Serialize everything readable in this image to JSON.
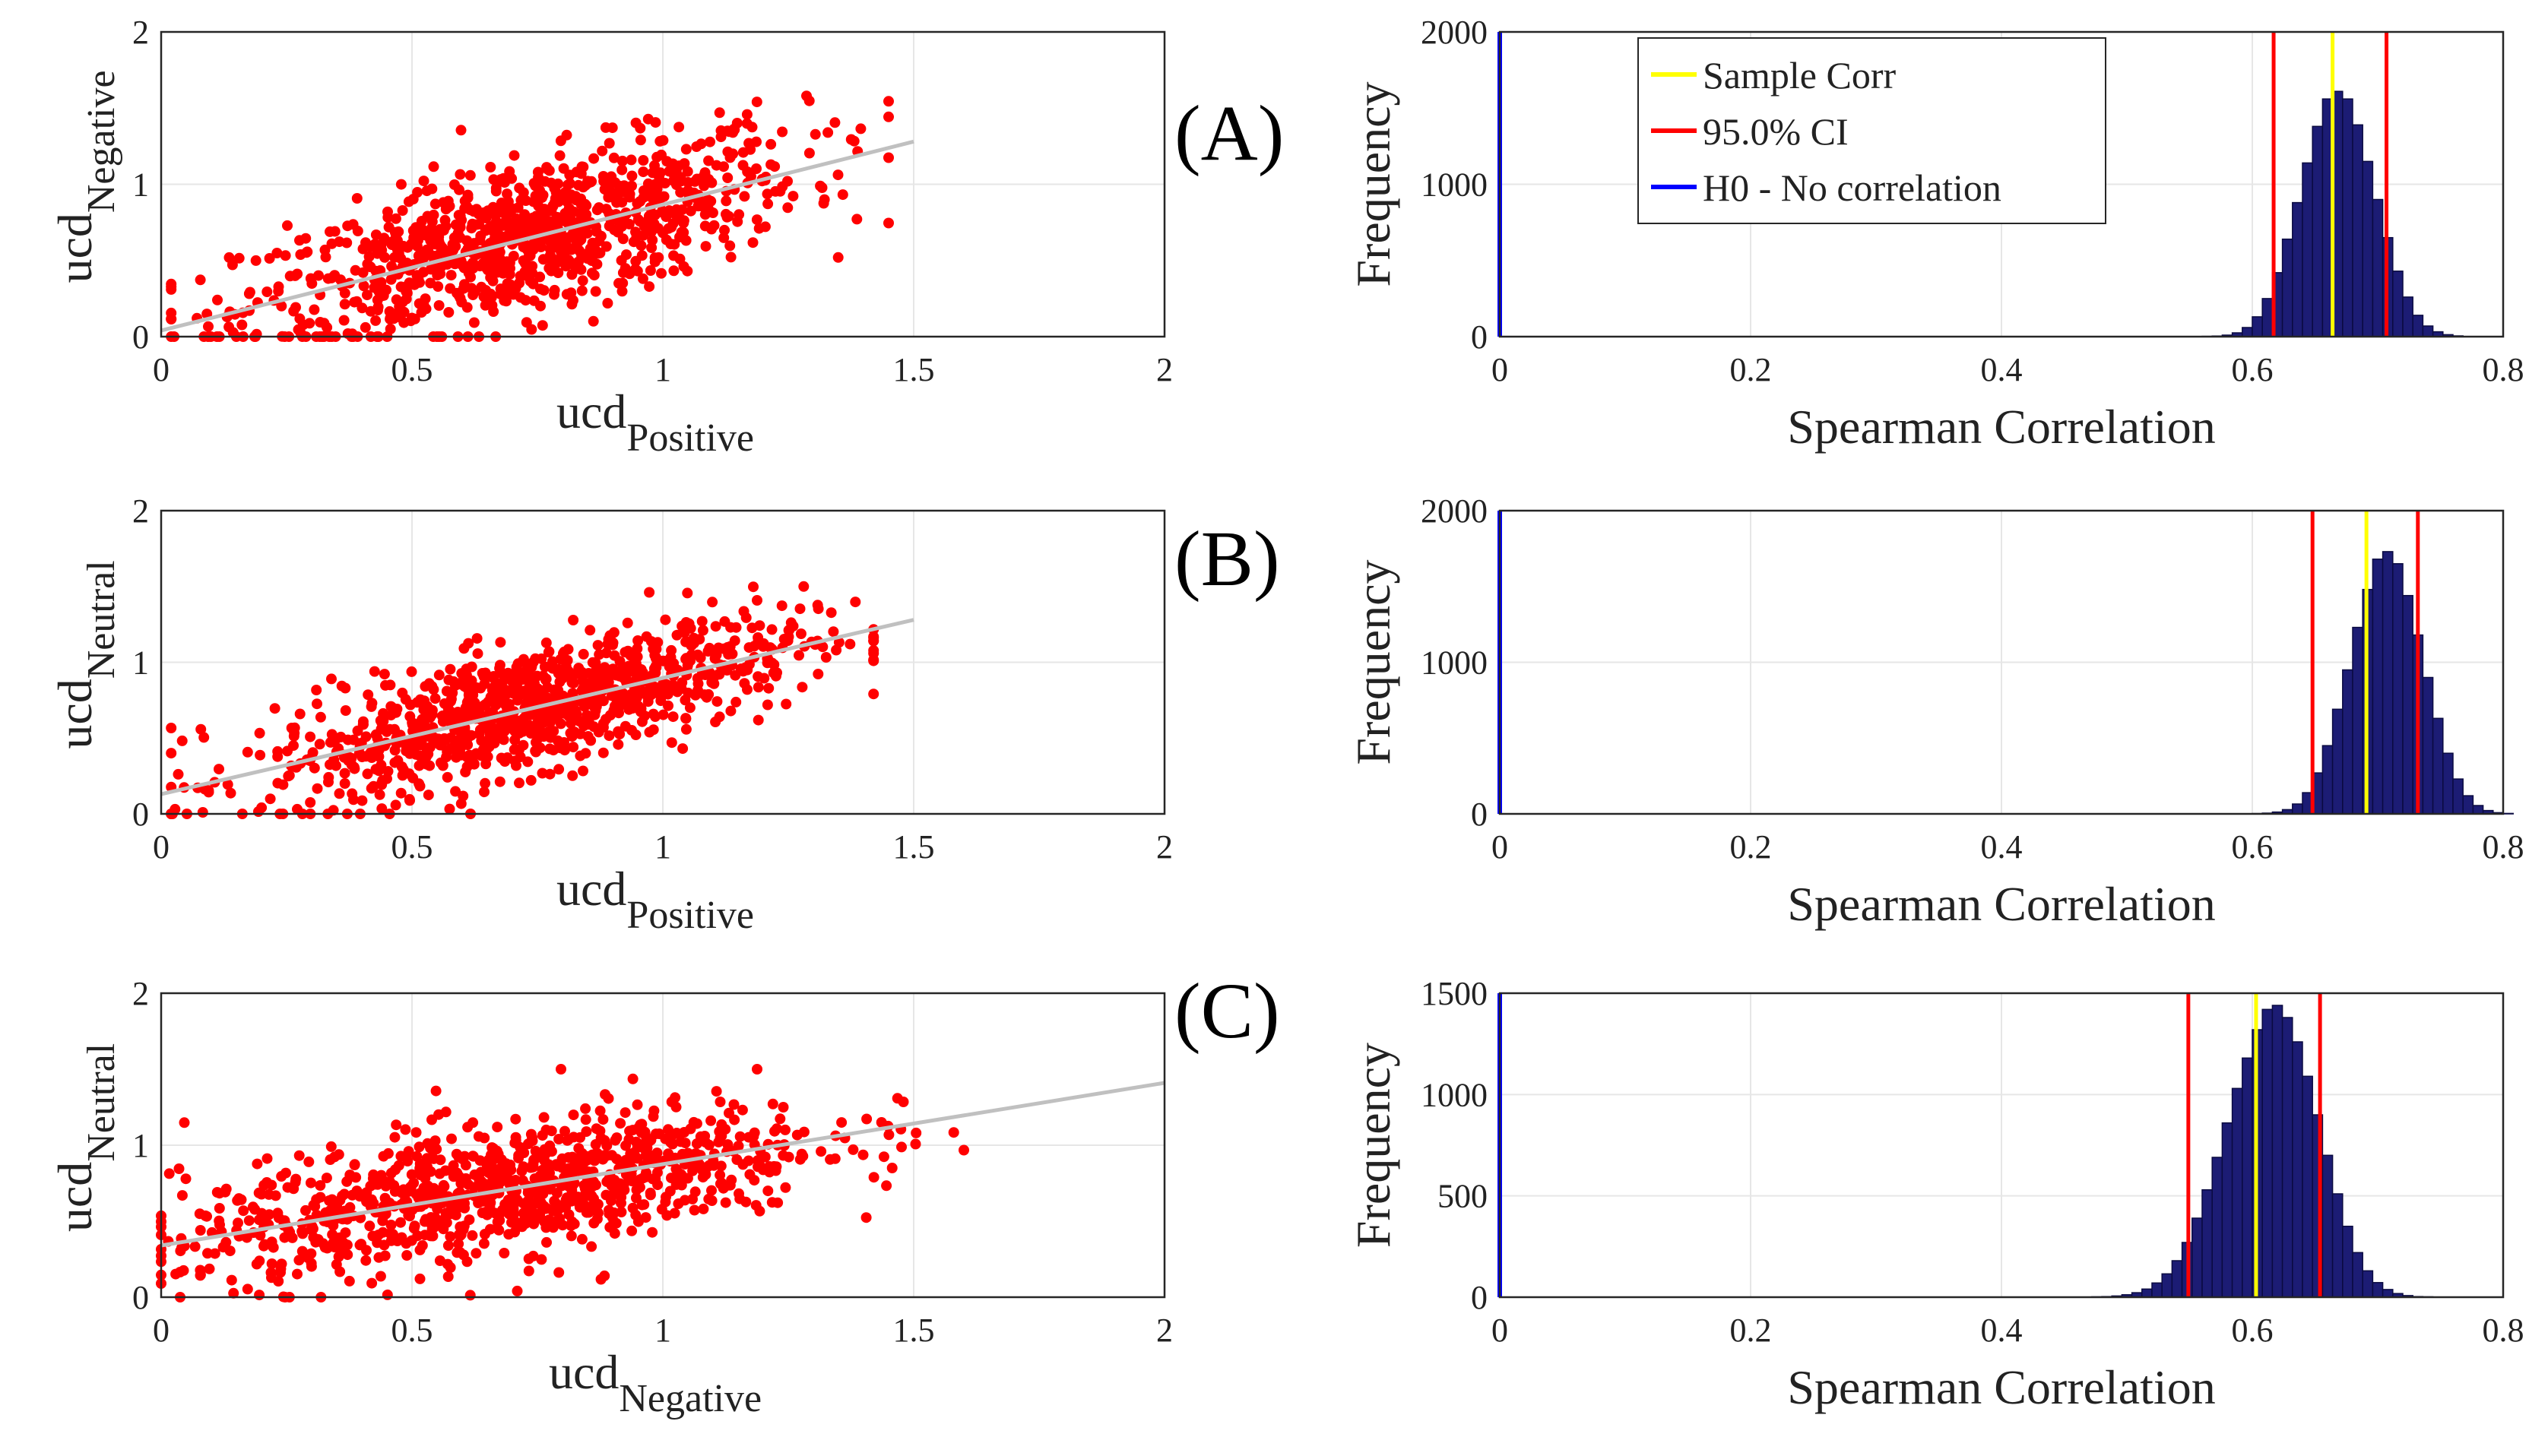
{
  "colors": {
    "scatter_points": "#ff0000",
    "fit_line": "#c0c0c0",
    "sample_corr": "#ffff00",
    "ci_line": "#ff0000",
    "null_line": "#0000ff",
    "hist_fill": "#1c1c74",
    "hist_edge": "#0a0a40",
    "grid": "#e6e6e6",
    "axis": "#262626"
  },
  "panel_labels": [
    "(A)",
    "(B)",
    "(C)"
  ],
  "legend": {
    "sample_corr": "Sample Corr",
    "ci": "95.0% CI",
    "h0": "H0 - No correlation"
  },
  "chart_data": [
    {
      "type": "scatter",
      "id": "A-scatter",
      "xlabel": "ucd",
      "xlabel_sub": "Positive",
      "ylabel": "ucd",
      "ylabel_sub": "Negative",
      "xlim": [
        0,
        2
      ],
      "ylim": [
        0,
        2
      ],
      "xticks": [
        "0",
        "0.5",
        "1",
        "1.5",
        "2"
      ],
      "yticks": [
        "0",
        "1",
        "2"
      ],
      "grid": true,
      "fit_line": {
        "x": [
          0,
          1.5
        ],
        "y": [
          0.04,
          1.28
        ]
      },
      "cloud": {
        "n": 1000,
        "x_mean": 0.72,
        "x_sd": 0.28,
        "x_range": [
          0.02,
          1.45
        ],
        "slope": 0.83,
        "intercept": 0.04,
        "noise_sd": 0.25,
        "y_range": [
          0,
          1.58
        ]
      }
    },
    {
      "type": "histogram",
      "id": "A-hist",
      "xlabel": "Spearman Correlation",
      "ylabel": "Frequency",
      "xlim": [
        0,
        0.8
      ],
      "ylim": [
        0,
        2000
      ],
      "xticks": [
        "0",
        "0.2",
        "0.4",
        "0.6",
        "0.8"
      ],
      "yticks": [
        "0",
        "1000",
        "2000"
      ],
      "grid": true,
      "bin_start": 0.56,
      "bin_width": 0.008,
      "counts": [
        2,
        4,
        10,
        25,
        60,
        130,
        250,
        420,
        640,
        880,
        1140,
        1380,
        1560,
        1610,
        1560,
        1390,
        1150,
        900,
        650,
        430,
        260,
        140,
        70,
        32,
        13,
        5
      ],
      "sample_corr": 0.664,
      "ci": [
        0.617,
        0.707
      ],
      "h0": 0,
      "legend": "top-left"
    },
    {
      "type": "scatter",
      "id": "B-scatter",
      "xlabel": "ucd",
      "xlabel_sub": "Positive",
      "ylabel": "ucd",
      "ylabel_sub": "Neutral",
      "xlim": [
        0,
        2
      ],
      "ylim": [
        0,
        2
      ],
      "xticks": [
        "0",
        "0.5",
        "1",
        "1.5",
        "2"
      ],
      "yticks": [
        "0",
        "1",
        "2"
      ],
      "grid": true,
      "fit_line": {
        "x": [
          0,
          1.5
        ],
        "y": [
          0.13,
          1.28
        ]
      },
      "cloud": {
        "n": 1000,
        "x_mean": 0.74,
        "x_sd": 0.27,
        "x_range": [
          0.02,
          1.42
        ],
        "slope": 0.77,
        "intercept": 0.13,
        "noise_sd": 0.2,
        "y_range": [
          0,
          1.5
        ]
      }
    },
    {
      "type": "histogram",
      "id": "B-hist",
      "xlabel": "Spearman Correlation",
      "ylabel": "Frequency",
      "xlim": [
        0,
        0.8
      ],
      "ylim": [
        0,
        2000
      ],
      "xticks": [
        "0",
        "0.2",
        "0.4",
        "0.6",
        "0.8"
      ],
      "yticks": [
        "0",
        "1000",
        "2000"
      ],
      "grid": true,
      "bin_start": 0.6,
      "bin_width": 0.008,
      "counts": [
        2,
        5,
        12,
        28,
        65,
        140,
        270,
        450,
        690,
        950,
        1230,
        1480,
        1680,
        1730,
        1650,
        1440,
        1180,
        900,
        630,
        400,
        230,
        120,
        55,
        22,
        8,
        3
      ],
      "sample_corr": 0.691,
      "ci": [
        0.648,
        0.732
      ],
      "h0": 0
    },
    {
      "type": "scatter",
      "id": "C-scatter",
      "xlabel": "ucd",
      "xlabel_sub": "Negative",
      "ylabel": "ucd",
      "ylabel_sub": "Neutral",
      "xlim": [
        0,
        2
      ],
      "ylim": [
        0,
        2
      ],
      "xticks": [
        "0",
        "0.5",
        "1",
        "1.5",
        "2"
      ],
      "yticks": [
        "0",
        "1",
        "2"
      ],
      "grid": true,
      "fit_line": {
        "x": [
          0,
          2
        ],
        "y": [
          0.34,
          1.41
        ]
      },
      "cloud": {
        "n": 1000,
        "x_mean": 0.68,
        "x_sd": 0.32,
        "x_range": [
          0,
          1.6
        ],
        "slope": 0.53,
        "intercept": 0.34,
        "noise_sd": 0.22,
        "y_range": [
          0,
          1.5
        ]
      }
    },
    {
      "type": "histogram",
      "id": "C-hist",
      "xlabel": "Spearman Correlation",
      "ylabel": "Frequency",
      "xlim": [
        0,
        0.8
      ],
      "ylim": [
        0,
        1500
      ],
      "xticks": [
        "0",
        "0.2",
        "0.4",
        "0.6",
        "0.8"
      ],
      "yticks": [
        "0",
        "500",
        "1000",
        "1500"
      ],
      "grid": true,
      "bin_start": 0.472,
      "bin_width": 0.008,
      "counts": [
        2,
        3,
        6,
        12,
        22,
        40,
        70,
        115,
        180,
        270,
        390,
        530,
        690,
        860,
        1030,
        1180,
        1320,
        1420,
        1440,
        1380,
        1260,
        1090,
        900,
        700,
        510,
        350,
        220,
        130,
        72,
        38,
        18,
        8,
        3,
        2
      ],
      "sample_corr": 0.603,
      "ci": [
        0.549,
        0.654
      ],
      "h0": 0
    }
  ]
}
